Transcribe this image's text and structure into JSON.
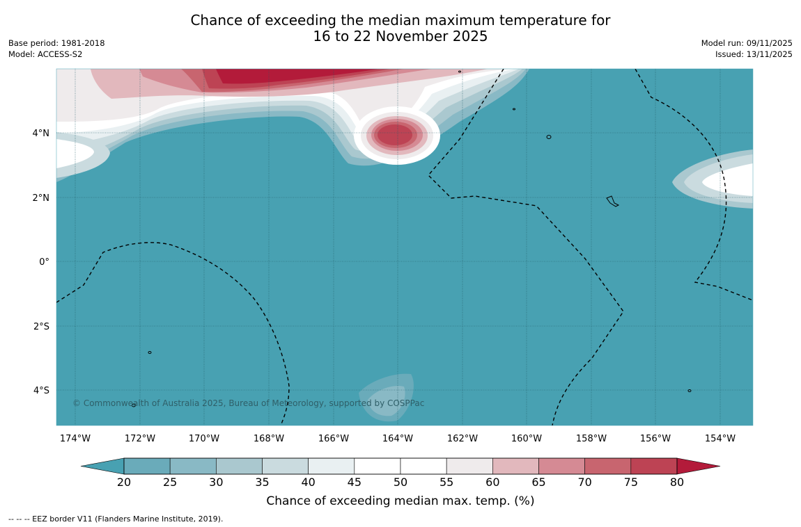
{
  "title_line1": "Chance of exceeding the median maximum temperature for",
  "title_line2": "16 to 22 November 2025",
  "left_meta": {
    "base_period": "Base period: 1981-2018",
    "model": "Model: ACCESS-S2"
  },
  "right_meta": {
    "model_run": "Model run: 09/11/2025",
    "issued": "Issued: 13/11/2025"
  },
  "map": {
    "lon_labels": [
      "174°W",
      "172°W",
      "170°W",
      "168°W",
      "166°W",
      "164°W",
      "162°W",
      "160°W",
      "158°W",
      "156°W",
      "154°W"
    ],
    "lat_labels": [
      "4°N",
      "2°N",
      "0°",
      "2°S",
      "4°S"
    ],
    "copyright": "© Commonwealth of Australia 2025, Bureau of Meteorology, supported by COSPPac"
  },
  "colorbar": {
    "ticks": [
      "20",
      "25",
      "30",
      "35",
      "40",
      "45",
      "50",
      "55",
      "60",
      "65",
      "70",
      "75",
      "80"
    ],
    "colors": [
      "#48a1b2",
      "#6aabba",
      "#89b9c5",
      "#aac8cf",
      "#cadbdf",
      "#e9f0f2",
      "#ffffff",
      "#ffffff",
      "#efebec",
      "#e2b8bd",
      "#d58a94",
      "#c8656f",
      "#bd4354",
      "#b31b3a"
    ],
    "title": "Chance of exceeding median max. temp. (%)"
  },
  "footer": "-- -- -- EEZ border V11 (Flanders Marine Institute, 2019)."
}
